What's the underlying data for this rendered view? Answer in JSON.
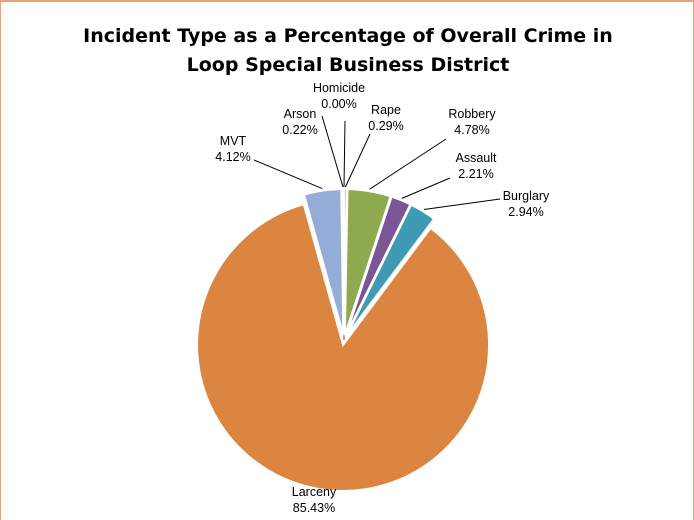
{
  "chart_data": {
    "type": "pie",
    "title_lines": [
      "Incident Type as a Percentage of Overall Crime in",
      "Loop Special Business District"
    ],
    "slices": [
      {
        "label": "Homicide",
        "value": 0.0,
        "value_text": "0.00%",
        "color": "#c0504d"
      },
      {
        "label": "Rape",
        "value": 0.29,
        "value_text": "0.29%",
        "color": "#d8827f"
      },
      {
        "label": "Robbery",
        "value": 4.78,
        "value_text": "4.78%",
        "color": "#8ea94e"
      },
      {
        "label": "Assault",
        "value": 2.21,
        "value_text": "2.21%",
        "color": "#7a5697"
      },
      {
        "label": "Burglary",
        "value": 2.94,
        "value_text": "2.94%",
        "color": "#3f9bb3"
      },
      {
        "label": "Larceny",
        "value": 85.43,
        "value_text": "85.43%",
        "color": "#dc8540"
      },
      {
        "label": "MVT",
        "value": 4.12,
        "value_text": "4.12%",
        "color": "#95add6"
      },
      {
        "label": "Arson",
        "value": 0.22,
        "value_text": "0.22%",
        "color": "#8e4545"
      }
    ],
    "legend": "none"
  }
}
